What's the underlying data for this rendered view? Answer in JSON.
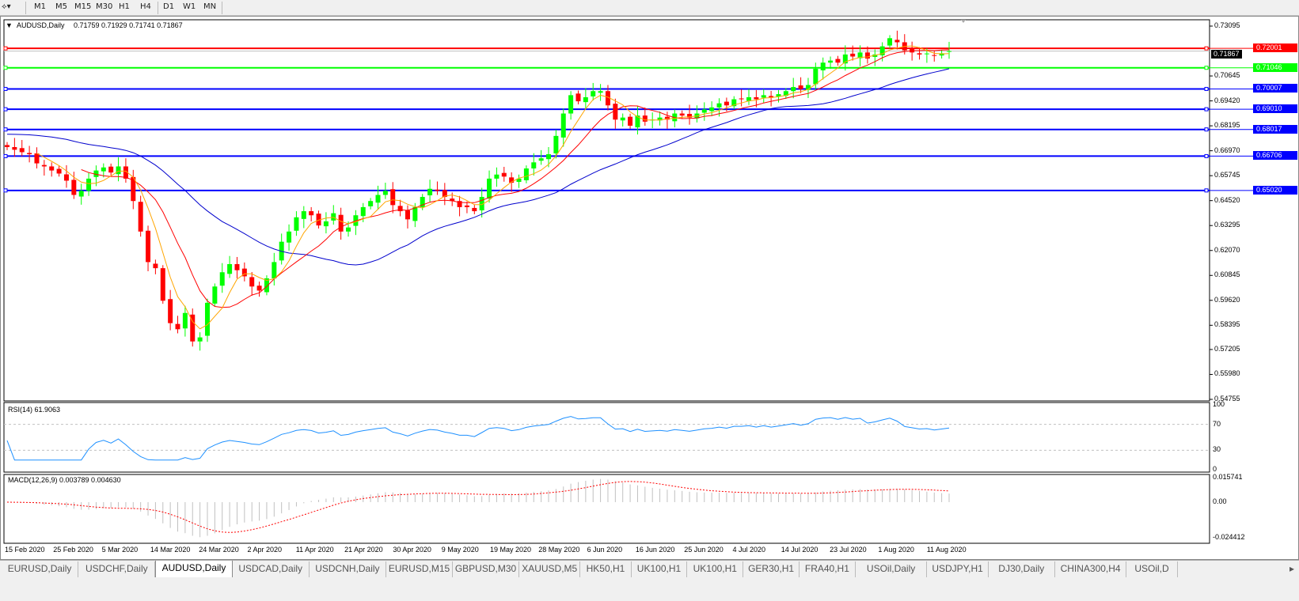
{
  "toolbar": {
    "timeframes": [
      "M1",
      "M5",
      "M15",
      "M30",
      "H1",
      "H4",
      "D1",
      "W1",
      "MN"
    ],
    "active": "D1"
  },
  "header": {
    "symbol": "AUDUSD,Daily",
    "ohlc": "0.71759 0.71929 0.71741 0.71867"
  },
  "price_axis": {
    "ticks": [
      "0.73095",
      "0.70645",
      "0.69420",
      "0.68195",
      "0.66970",
      "0.65745",
      "0.64520",
      "0.63295",
      "0.62070",
      "0.60845",
      "0.59620",
      "0.58395",
      "0.57205",
      "0.55980",
      "0.54755"
    ],
    "current_price": "0.71867"
  },
  "levels": [
    {
      "value": "0.72001",
      "color": "#ff0000"
    },
    {
      "value": "0.71046",
      "color": "#00ff00"
    },
    {
      "value": "0.70007",
      "color": "#0000ff"
    },
    {
      "value": "0.69010",
      "color": "#0000ff"
    },
    {
      "value": "0.68017",
      "color": "#0000ff"
    },
    {
      "value": "0.66706",
      "color": "#0000ff"
    },
    {
      "value": "0.65020",
      "color": "#0000ff"
    }
  ],
  "rsi": {
    "label": "RSI(14) 61.9063",
    "ticks": [
      "100",
      "70",
      "30",
      "0"
    ]
  },
  "macd": {
    "label": "MACD(12,26,9) 0.003789 0.004630",
    "ticks": [
      "0.015741",
      "0.00",
      "-0.024412"
    ]
  },
  "dates": [
    "15 Feb 2020",
    "25 Feb 2020",
    "5 Mar 2020",
    "14 Mar 2020",
    "24 Mar 2020",
    "2 Apr 2020",
    "11 Apr 2020",
    "21 Apr 2020",
    "30 Apr 2020",
    "9 May 2020",
    "19 May 2020",
    "28 May 2020",
    "6 Jun 2020",
    "16 Jun 2020",
    "25 Jun 2020",
    "4 Jul 2020",
    "14 Jul 2020",
    "23 Jul 2020",
    "1 Aug 2020",
    "11 Aug 2020"
  ],
  "tabs": [
    "EURUSD,Daily",
    "USDCHF,Daily",
    "AUDUSD,Daily",
    "USDCAD,Daily",
    "USDCNH,Daily",
    "EURUSD,M15",
    "GBPUSD,M30",
    "XAUUSD,M5",
    "HK50,H1",
    "UK100,H1",
    "UK100,H1",
    "GER30,H1",
    "FRA40,H1",
    "USOil,Daily",
    "USDJPY,H1",
    "DJ30,Daily",
    "CHINA300,H4",
    "USOil,D"
  ],
  "active_tab": "AUDUSD,Daily",
  "colors": {
    "bull": "#00ff00",
    "bear": "#ff0000",
    "ma_fast": "#ffa500",
    "ma_mid": "#ff0000",
    "ma_slow": "#0000cd",
    "rsi": "#1e90ff",
    "macd_signal": "#ff0000",
    "macd_hist": "#c0c0c0"
  },
  "chart_data": {
    "type": "candlestick",
    "ylim": [
      0.54755,
      0.73095
    ],
    "close": [
      0.6715,
      0.6702,
      0.669,
      0.668,
      0.6635,
      0.662,
      0.66,
      0.6585,
      0.655,
      0.648,
      0.65,
      0.656,
      0.66,
      0.6615,
      0.659,
      0.662,
      0.656,
      0.645,
      0.63,
      0.615,
      0.612,
      0.596,
      0.585,
      0.582,
      0.59,
      0.576,
      0.578,
      0.595,
      0.603,
      0.61,
      0.614,
      0.611,
      0.608,
      0.603,
      0.601,
      0.607,
      0.615,
      0.625,
      0.63,
      0.637,
      0.64,
      0.638,
      0.633,
      0.635,
      0.639,
      0.63,
      0.632,
      0.638,
      0.642,
      0.645,
      0.648,
      0.65,
      0.643,
      0.64,
      0.636,
      0.642,
      0.647,
      0.651,
      0.65,
      0.647,
      0.645,
      0.642,
      0.642,
      0.64,
      0.647,
      0.656,
      0.658,
      0.657,
      0.654,
      0.656,
      0.661,
      0.664,
      0.666,
      0.668,
      0.677,
      0.688,
      0.697,
      0.694,
      0.696,
      0.699,
      0.699,
      0.692,
      0.685,
      0.686,
      0.682,
      0.687,
      0.684,
      0.685,
      0.686,
      0.685,
      0.688,
      0.687,
      0.686,
      0.688,
      0.69,
      0.691,
      0.693,
      0.692,
      0.695,
      0.695,
      0.696,
      0.695,
      0.697,
      0.696,
      0.6975,
      0.699,
      0.701,
      0.7,
      0.702,
      0.71,
      0.713,
      0.714,
      0.713,
      0.717,
      0.716,
      0.718,
      0.715,
      0.717,
      0.721,
      0.725,
      0.723,
      0.719,
      0.718,
      0.717,
      0.7175,
      0.7165,
      0.7176,
      0.7187
    ]
  }
}
